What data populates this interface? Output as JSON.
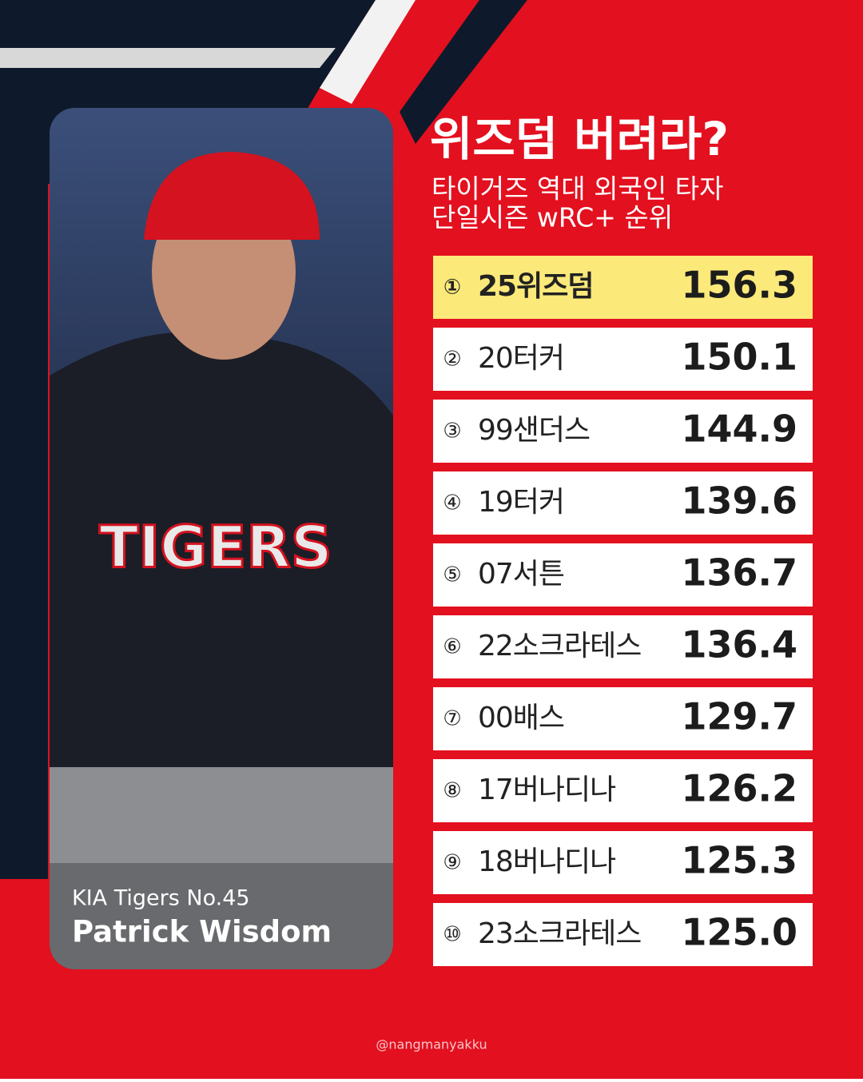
{
  "header": {
    "title": "위즈덤 버려라?",
    "subtitle": [
      "타이거즈 역대 외국인 타자",
      "단일시즌 wRC+ 순위"
    ]
  },
  "photo": {
    "caption": "KIA Tigers No.45",
    "name": "Patrick Wisdom"
  },
  "table": {
    "rows": [
      {
        "rank": "①",
        "name": "25위즈덤",
        "value": "156.3"
      },
      {
        "rank": "②",
        "name": "20터커",
        "value": "150.1"
      },
      {
        "rank": "③",
        "name": "99샌더스",
        "value": "144.9"
      },
      {
        "rank": "④",
        "name": "19터커",
        "value": "139.6"
      },
      {
        "rank": "⑤",
        "name": "07서튼",
        "value": "136.7"
      },
      {
        "rank": "⑥",
        "name": "22소크라테스",
        "value": "136.4"
      },
      {
        "rank": "⑦",
        "name": "00배스",
        "value": "129.7"
      },
      {
        "rank": "⑧",
        "name": "17버나디나",
        "value": "126.2"
      },
      {
        "rank": "⑨",
        "name": "18버나디나",
        "value": "125.3"
      },
      {
        "rank": "⑩",
        "name": "23소크라테스",
        "value": "125.0"
      }
    ]
  },
  "footer": "@nangmanyakku"
}
